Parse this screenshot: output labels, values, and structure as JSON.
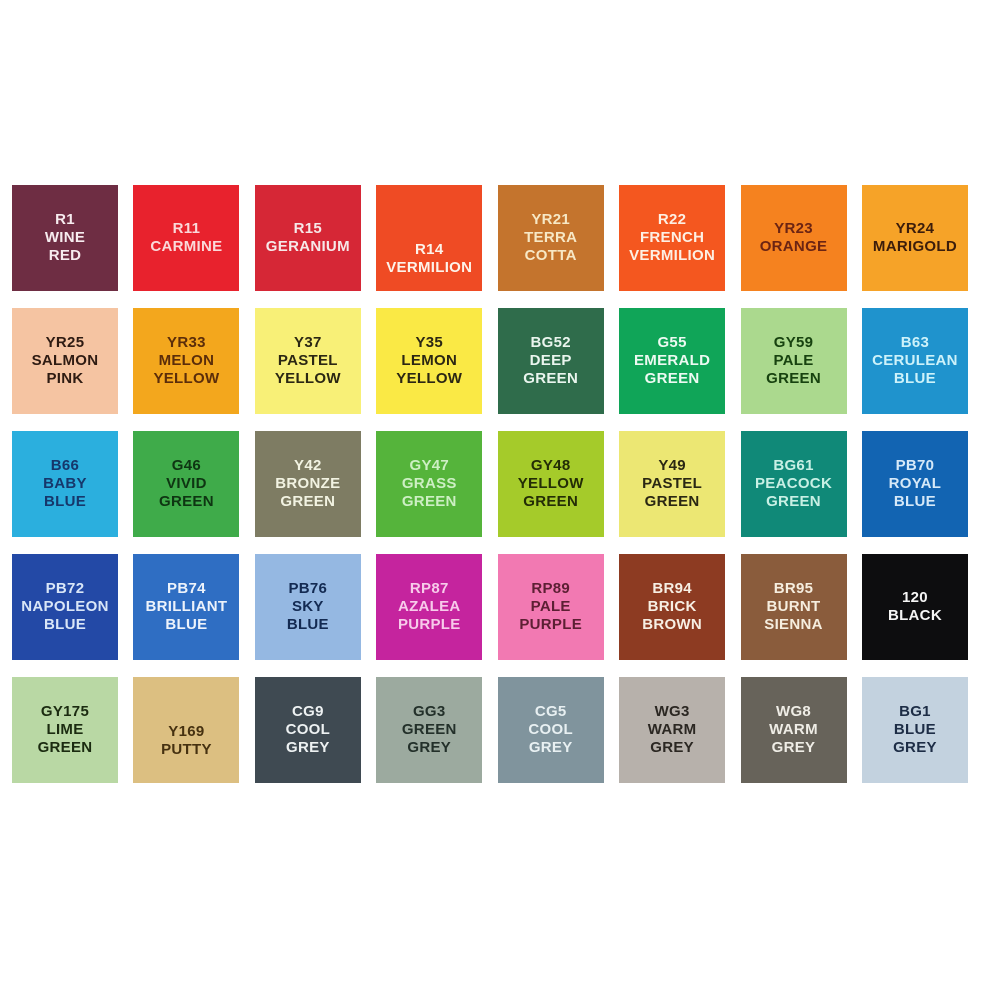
{
  "page": {
    "background": "#ffffff",
    "description_rows": 5,
    "description_cols": 8
  },
  "swatches": [
    {
      "code": "R1",
      "name": "WINE\nRED",
      "bg": "#6E2D43",
      "fg": "#F7ECEF"
    },
    {
      "code": "R11",
      "name": "CARMINE",
      "bg": "#E8222D",
      "fg": "#FAD9DA"
    },
    {
      "code": "R15",
      "name": "GERANIUM",
      "bg": "#D62736",
      "fg": "#F6E8E8"
    },
    {
      "code": "R14",
      "name": "VERMILION",
      "bg": "#EF4B24",
      "fg": "#FDF3EA"
    },
    {
      "code": "YR21",
      "name": "TERRA\nCOTTA",
      "bg": "#C4742D",
      "fg": "#F7E8C5"
    },
    {
      "code": "R22",
      "name": "FRENCH\nVERMILION",
      "bg": "#F4571F",
      "fg": "#FDF0E4"
    },
    {
      "code": "YR23",
      "name": "ORANGE",
      "bg": "#F5821F",
      "fg": "#6B2413"
    },
    {
      "code": "YR24",
      "name": "MARIGOLD",
      "bg": "#F6A328",
      "fg": "#3C1D0B"
    },
    {
      "code": "YR25",
      "name": "SALMON\nPINK",
      "bg": "#F5C4A2",
      "fg": "#2E1B12"
    },
    {
      "code": "YR33",
      "name": "MELON\nYELLOW",
      "bg": "#F3A71D",
      "fg": "#5B2D0A"
    },
    {
      "code": "Y37",
      "name": "PASTEL\nYELLOW",
      "bg": "#F8F077",
      "fg": "#2B2713"
    },
    {
      "code": "Y35",
      "name": "LEMON\nYELLOW",
      "bg": "#FAE945",
      "fg": "#2B2613"
    },
    {
      "code": "BG52",
      "name": "DEEP\nGREEN",
      "bg": "#2F6C4B",
      "fg": "#EAF5EE"
    },
    {
      "code": "G55",
      "name": "EMERALD\nGREEN",
      "bg": "#10A558",
      "fg": "#EDFAF2"
    },
    {
      "code": "GY59",
      "name": "PALE\nGREEN",
      "bg": "#ABD98E",
      "fg": "#17420F"
    },
    {
      "code": "B63",
      "name": "CERULEAN\nBLUE",
      "bg": "#1F93CD",
      "fg": "#CDF2FA"
    },
    {
      "code": "B66",
      "name": "BABY\nBLUE",
      "bg": "#2BAFDE",
      "fg": "#16376B"
    },
    {
      "code": "G46",
      "name": "VIVID\nGREEN",
      "bg": "#3FAB4A",
      "fg": "#0E3512"
    },
    {
      "code": "Y42",
      "name": "BRONZE\nGREEN",
      "bg": "#7E7C63",
      "fg": "#F2F3E2"
    },
    {
      "code": "GY47",
      "name": "GRASS\nGREEN",
      "bg": "#55B43B",
      "fg": "#CDEFC4"
    },
    {
      "code": "GY48",
      "name": "YELLOW\nGREEN",
      "bg": "#A5CB2A",
      "fg": "#232D06"
    },
    {
      "code": "Y49",
      "name": "PASTEL\nGREEN",
      "bg": "#ECE773",
      "fg": "#2A2713"
    },
    {
      "code": "BG61",
      "name": "PEACOCK\nGREEN",
      "bg": "#108978",
      "fg": "#C8F0E5"
    },
    {
      "code": "PB70",
      "name": "ROYAL\nBLUE",
      "bg": "#1264B2",
      "fg": "#D6E9F8"
    },
    {
      "code": "PB72",
      "name": "NAPOLEON\nBLUE",
      "bg": "#2349A6",
      "fg": "#D9E6F7"
    },
    {
      "code": "PB74",
      "name": "BRILLIANT\nBLUE",
      "bg": "#2F6EC3",
      "fg": "#EDF3FB"
    },
    {
      "code": "PB76",
      "name": "SKY\nBLUE",
      "bg": "#95B8E2",
      "fg": "#132A52"
    },
    {
      "code": "RP87",
      "name": "AZALEA\nPURPLE",
      "bg": "#C5249E",
      "fg": "#F7CBEA"
    },
    {
      "code": "RP89",
      "name": "PALE\nPURPLE",
      "bg": "#F279B2",
      "fg": "#5C1F33"
    },
    {
      "code": "BR94",
      "name": "BRICK\nBROWN",
      "bg": "#8D3B22",
      "fg": "#F7EFE4"
    },
    {
      "code": "BR95",
      "name": "BURNT\nSIENNA",
      "bg": "#8A5C3C",
      "fg": "#F6EEDF"
    },
    {
      "code": "120",
      "name": "BLACK",
      "bg": "#0D0D0F",
      "fg": "#F5F5F5"
    },
    {
      "code": "GY175",
      "name": "LIME\nGREEN",
      "bg": "#B9D8A4",
      "fg": "#1B2B10"
    },
    {
      "code": "Y169",
      "name": "PUTTY",
      "bg": "#DCBF81",
      "fg": "#463110"
    },
    {
      "code": "CG9",
      "name": "COOL\nGREY",
      "bg": "#3F4A52",
      "fg": "#EDF1F2"
    },
    {
      "code": "GG3",
      "name": "GREEN\nGREY",
      "bg": "#9CAA9F",
      "fg": "#23302A"
    },
    {
      "code": "CG5",
      "name": "COOL\nGREY",
      "bg": "#80949D",
      "fg": "#E8F0F2"
    },
    {
      "code": "WG3",
      "name": "WARM\nGREY",
      "bg": "#B7B1AB",
      "fg": "#2B2722"
    },
    {
      "code": "WG8",
      "name": "WARM\nGREY",
      "bg": "#67635A",
      "fg": "#EFEDE6"
    },
    {
      "code": "BG1",
      "name": "BLUE\nGREY",
      "bg": "#C3D2DF",
      "fg": "#1D2D46"
    }
  ]
}
